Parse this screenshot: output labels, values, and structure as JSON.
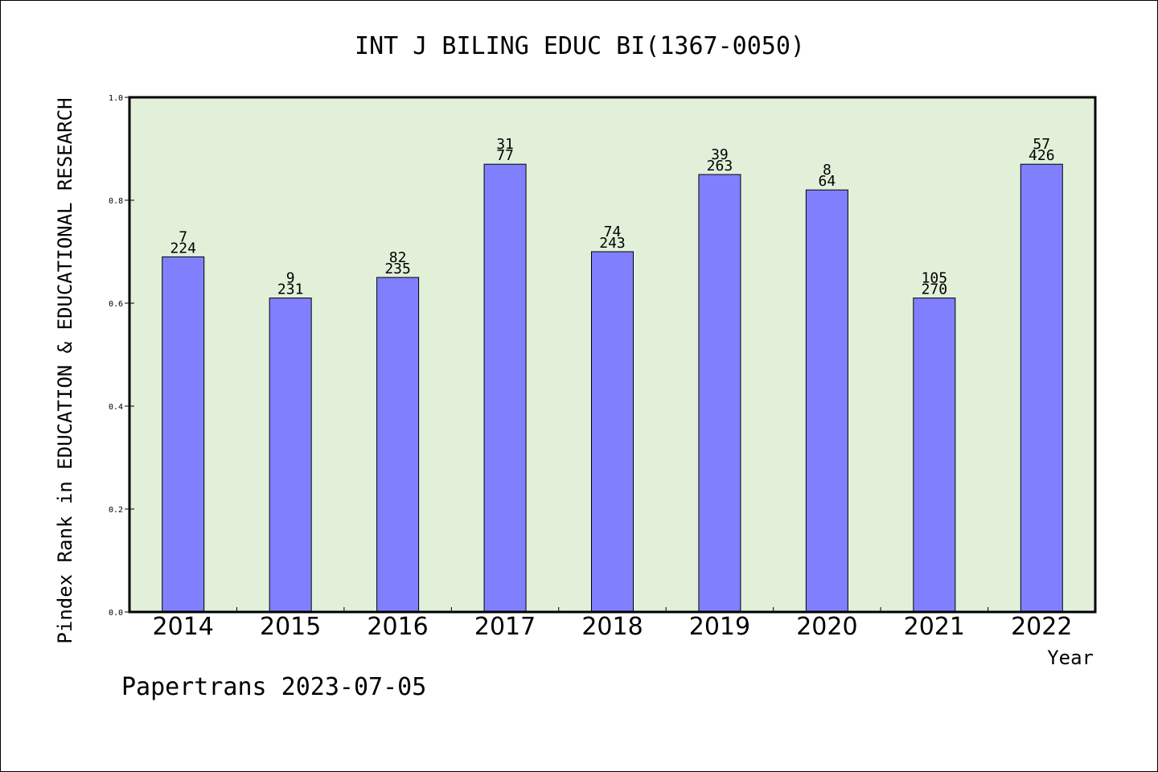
{
  "chart_data": {
    "type": "bar",
    "title": "INT J BILING EDUC BI(1367-0050)",
    "xlabel": "Year",
    "ylabel": "Pindex Rank in EDUCATION & EDUCATIONAL RESEARCH",
    "categories": [
      "2014",
      "2015",
      "2016",
      "2017",
      "2018",
      "2019",
      "2020",
      "2021",
      "2022"
    ],
    "values": [
      0.69,
      0.61,
      0.65,
      0.87,
      0.7,
      0.85,
      0.82,
      0.61,
      0.87
    ],
    "rank_labels": [
      "7",
      "9",
      "82",
      "31",
      "74",
      "39",
      "8",
      "105",
      "57"
    ],
    "total_labels": [
      "224",
      "231",
      "235",
      "77",
      "243",
      "263",
      "64",
      "270",
      "426"
    ],
    "ylim": [
      0,
      1.0
    ],
    "yticks": [
      "0.0",
      "0.2",
      "0.4",
      "0.6",
      "0.8",
      "1.0"
    ],
    "grid": false,
    "legend": "none"
  },
  "colors": {
    "plot_background": "#e2f0d9",
    "bar_fill": "#8080ff",
    "bar_stroke": "#000000",
    "frame": "#000000"
  },
  "footer": "Papertrans 2023-07-05"
}
